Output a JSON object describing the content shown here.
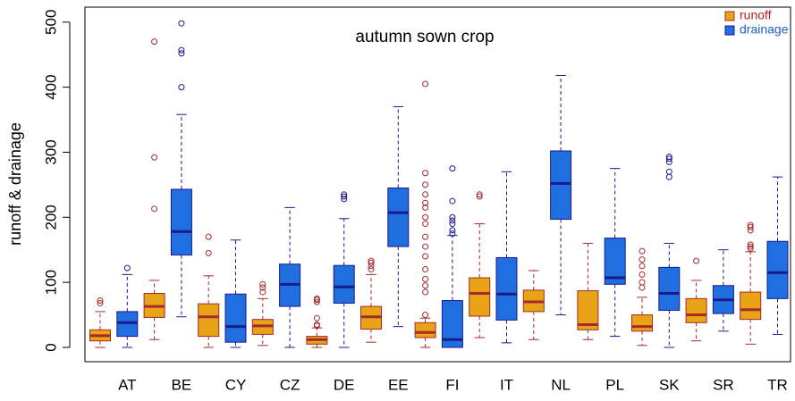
{
  "chart_data": {
    "type": "box",
    "title": "autumn sown crop",
    "y_label": "runoff & drainage",
    "categories": [
      "AT",
      "BE",
      "CY",
      "CZ",
      "DE",
      "EE",
      "FI",
      "IT",
      "NL",
      "PL",
      "SK",
      "SR",
      "TR"
    ],
    "ylim": [
      -22,
      523
    ],
    "yticks": [
      0,
      100,
      200,
      300,
      400,
      500
    ],
    "legend": "top-right",
    "series": [
      {
        "name": "runoff",
        "color": "#e8a317",
        "edge_color": "#a52a2a",
        "label_color": "#b22222",
        "stats": [
          [
            0,
            10,
            18,
            27,
            55
          ],
          [
            12,
            46,
            63,
            83,
            103
          ],
          [
            0,
            17,
            47,
            67,
            110
          ],
          [
            3,
            20,
            33,
            43,
            75
          ],
          [
            0,
            5,
            12,
            17,
            30
          ],
          [
            8,
            28,
            47,
            63,
            112
          ],
          [
            0,
            15,
            23,
            38,
            45
          ],
          [
            15,
            48,
            83,
            107,
            190
          ],
          [
            12,
            55,
            70,
            88,
            118
          ],
          [
            12,
            27,
            35,
            87,
            160
          ],
          [
            3,
            25,
            32,
            50,
            77
          ],
          [
            10,
            38,
            50,
            75,
            103
          ],
          [
            5,
            43,
            58,
            85,
            147
          ]
        ],
        "outliers": [
          [
            68,
            72
          ],
          [
            213,
            292,
            470
          ],
          [
            145,
            170
          ],
          [
            85,
            92,
            97
          ],
          [
            33,
            35,
            45,
            70,
            73,
            75
          ],
          [
            120,
            125,
            130,
            133
          ],
          [
            50,
            85,
            95,
            105,
            120,
            140,
            155,
            170,
            190,
            200,
            215,
            222,
            235,
            250,
            268,
            405
          ],
          [
            232,
            235
          ],
          [],
          [],
          [
            92,
            100,
            112,
            125,
            135,
            148
          ],
          [
            133
          ],
          [
            152,
            155,
            158,
            180,
            185,
            188
          ]
        ]
      },
      {
        "name": "drainage",
        "color": "#1f6fe0",
        "edge_color": "#1a1a8c",
        "label_color": "#1f5fd0",
        "stats": [
          [
            0,
            17,
            38,
            55,
            112
          ],
          [
            47,
            142,
            178,
            243,
            358
          ],
          [
            0,
            8,
            32,
            82,
            165
          ],
          [
            0,
            63,
            97,
            128,
            215
          ],
          [
            0,
            68,
            93,
            126,
            198
          ],
          [
            32,
            155,
            207,
            245,
            370
          ],
          [
            0,
            0,
            12,
            72,
            172
          ],
          [
            7,
            42,
            82,
            138,
            270
          ],
          [
            50,
            197,
            252,
            302,
            418
          ],
          [
            17,
            97,
            107,
            168,
            275
          ],
          [
            0,
            57,
            83,
            123,
            160
          ],
          [
            25,
            52,
            73,
            95,
            150
          ],
          [
            20,
            75,
            115,
            163,
            262
          ]
        ],
        "outliers": [
          [
            122
          ],
          [
            400,
            452,
            457,
            498
          ],
          [],
          [],
          [
            228,
            232,
            235
          ],
          [],
          [
            175,
            180,
            190,
            195,
            200,
            225,
            275
          ],
          [],
          [],
          [],
          [
            262,
            270,
            285,
            290,
            293
          ],
          [],
          []
        ]
      }
    ]
  }
}
